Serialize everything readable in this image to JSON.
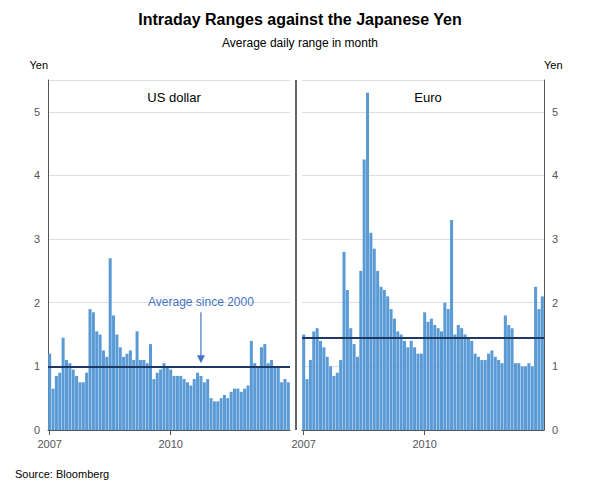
{
  "title": "Intraday Ranges against the Japanese Yen",
  "subtitle": "Average daily range in month",
  "source": "Source: Bloomberg",
  "chart_data": [
    {
      "type": "bar",
      "title": "US dollar",
      "ylabel": "Yen",
      "categories": [
        "2007",
        null,
        null,
        null,
        null,
        null,
        null,
        null,
        null,
        null,
        null,
        null,
        null,
        null,
        null,
        null,
        null,
        null,
        null,
        null,
        null,
        null,
        null,
        null,
        null,
        null,
        null,
        null,
        null,
        null,
        null,
        null,
        null,
        null,
        null,
        null,
        "2010",
        null,
        null,
        null,
        null,
        null,
        null,
        null,
        null,
        null,
        null,
        null,
        null,
        null,
        null,
        null,
        null,
        null,
        null,
        null,
        null,
        null,
        null,
        null,
        null,
        null,
        null,
        null,
        null,
        null,
        null,
        null,
        null,
        null,
        null,
        null
      ],
      "values": [
        1.2,
        0.65,
        0.85,
        0.9,
        1.45,
        1.1,
        1.05,
        0.95,
        0.85,
        0.75,
        0.75,
        0.9,
        1.9,
        1.85,
        1.55,
        1.5,
        1.25,
        1.15,
        2.7,
        1.8,
        1.5,
        1.3,
        1.15,
        1.2,
        1.25,
        1.1,
        1.55,
        1.1,
        1.1,
        1.05,
        1.35,
        0.8,
        0.9,
        0.95,
        1.05,
        1.0,
        0.95,
        0.85,
        0.85,
        0.85,
        0.8,
        0.75,
        0.7,
        0.8,
        0.9,
        0.85,
        0.75,
        0.8,
        0.5,
        0.45,
        0.45,
        0.5,
        0.55,
        0.5,
        0.6,
        0.65,
        0.65,
        0.6,
        0.65,
        0.7,
        1.4,
        1.05,
        1.0,
        1.3,
        1.35,
        1.05,
        1.1,
        1.0,
        1.0,
        0.75,
        0.8,
        0.75
      ],
      "color": "#5b9bd5",
      "average": 1.0,
      "average_color": "#1f3864",
      "annotation": "Average since 2000",
      "annotation_color": "#4472c4",
      "ylim": [
        0,
        5.5
      ],
      "yticks": [
        0,
        1,
        2,
        3,
        4,
        5
      ],
      "grid": true
    },
    {
      "type": "bar",
      "title": "Euro",
      "ylabel": "Yen",
      "categories": [
        "2007",
        null,
        null,
        null,
        null,
        null,
        null,
        null,
        null,
        null,
        null,
        null,
        null,
        null,
        null,
        null,
        null,
        null,
        null,
        null,
        null,
        null,
        null,
        null,
        null,
        null,
        null,
        null,
        null,
        null,
        null,
        null,
        null,
        null,
        null,
        null,
        "2010",
        null,
        null,
        null,
        null,
        null,
        null,
        null,
        null,
        null,
        null,
        null,
        null,
        null,
        null,
        null,
        null,
        null,
        null,
        null,
        null,
        null,
        null,
        null,
        null,
        null,
        null,
        null,
        null,
        null,
        null,
        null,
        null,
        null,
        null,
        null
      ],
      "values": [
        1.5,
        0.8,
        1.1,
        1.55,
        1.6,
        1.4,
        1.3,
        1.15,
        1.0,
        0.85,
        0.9,
        1.1,
        2.8,
        2.2,
        1.6,
        1.35,
        1.15,
        2.5,
        4.25,
        5.3,
        3.1,
        2.85,
        2.5,
        2.25,
        2.2,
        2.1,
        1.9,
        1.75,
        1.55,
        1.5,
        1.4,
        1.3,
        1.4,
        1.3,
        1.2,
        1.2,
        1.85,
        1.7,
        1.75,
        1.65,
        1.6,
        1.55,
        2.0,
        1.9,
        3.3,
        1.5,
        1.65,
        1.6,
        1.5,
        1.45,
        1.4,
        1.2,
        1.15,
        1.1,
        1.1,
        1.2,
        1.25,
        1.15,
        1.1,
        1.05,
        1.8,
        1.65,
        1.6,
        1.05,
        1.05,
        1.0,
        1.0,
        1.05,
        1.0,
        2.25,
        1.9,
        2.1
      ],
      "color": "#5b9bd5",
      "average": 1.45,
      "average_color": "#1f3864",
      "ylim": [
        0,
        5.5
      ],
      "yticks": [
        0,
        1,
        2,
        3,
        4,
        5
      ],
      "grid": true
    }
  ]
}
